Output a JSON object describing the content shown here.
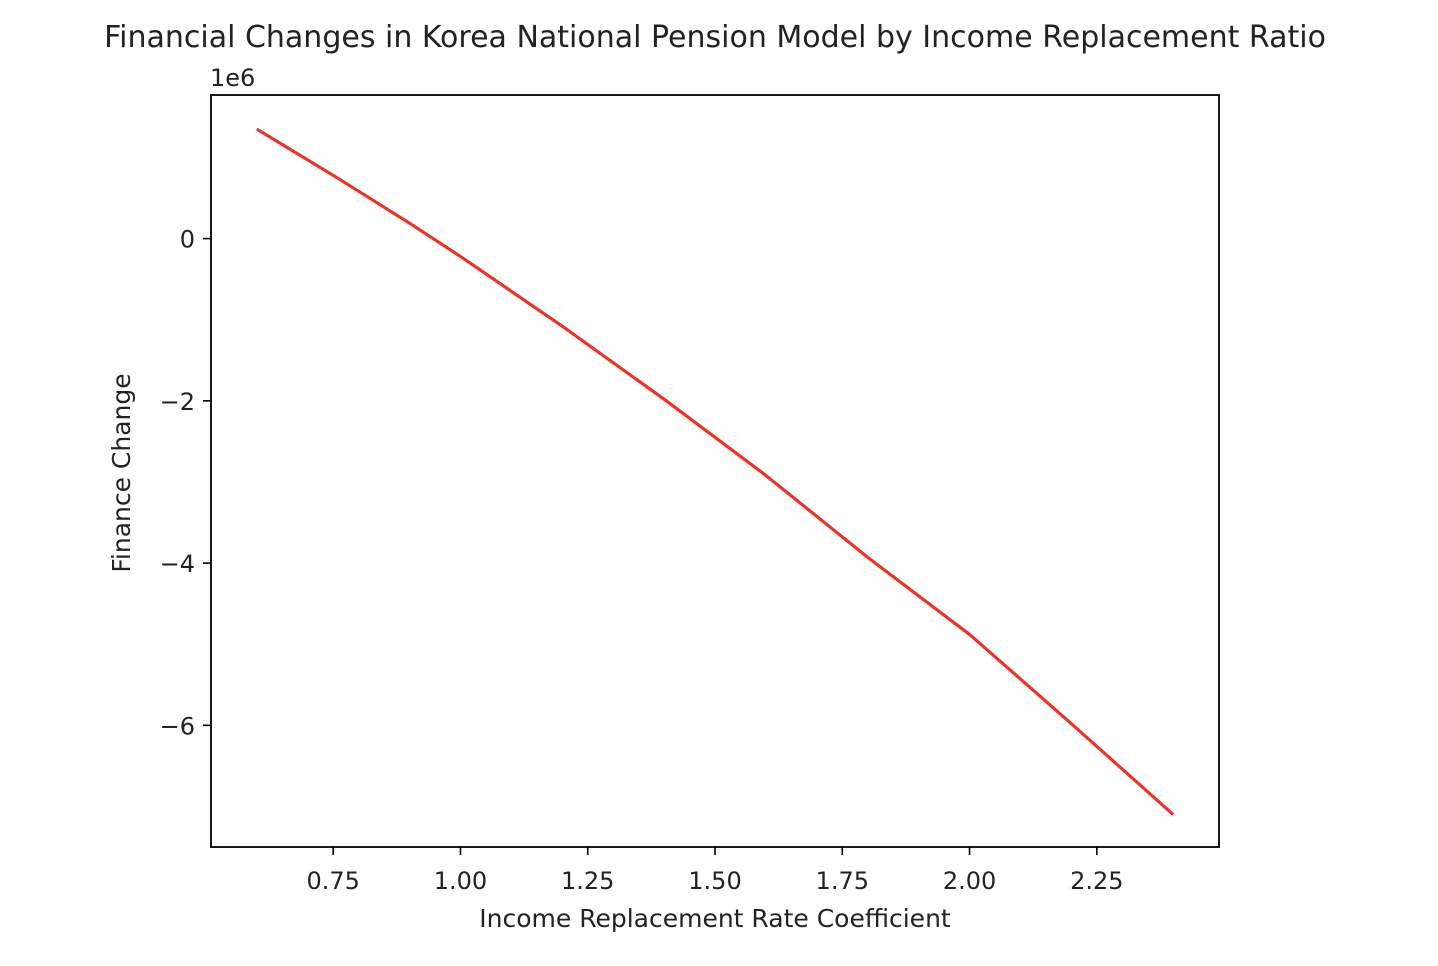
{
  "chart_data": {
    "type": "line",
    "title": "Financial Changes in Korea National Pension Model by Income Replacement Ratio",
    "xlabel": "Income Replacement Rate Coefficient",
    "ylabel": "Finance Change",
    "y_offset_label": "1e6",
    "xlim": [
      0.51,
      2.49
    ],
    "ylim": [
      -7.5,
      1.77
    ],
    "y_scale": 1000000,
    "x_ticks": [
      0.75,
      1.0,
      1.25,
      1.5,
      1.75,
      2.0,
      2.25
    ],
    "x_tick_labels": [
      "0.75",
      "1.00",
      "1.25",
      "1.50",
      "1.75",
      "2.00",
      "2.25"
    ],
    "y_ticks": [
      0,
      -2,
      -4,
      -6
    ],
    "y_tick_labels": [
      "0",
      "−2",
      "−4",
      "−6"
    ],
    "grid": false,
    "legend": "none",
    "series": [
      {
        "color": "#e8352a",
        "x": [
          0.6,
          0.75,
          0.9,
          1.0,
          1.2,
          1.4,
          1.6,
          1.8,
          2.0,
          2.2,
          2.4
        ],
        "y": [
          1.35,
          0.78,
          0.19,
          -0.22,
          -1.08,
          -1.98,
          -2.92,
          -3.93,
          -4.88,
          -5.98,
          -7.1
        ]
      }
    ]
  }
}
